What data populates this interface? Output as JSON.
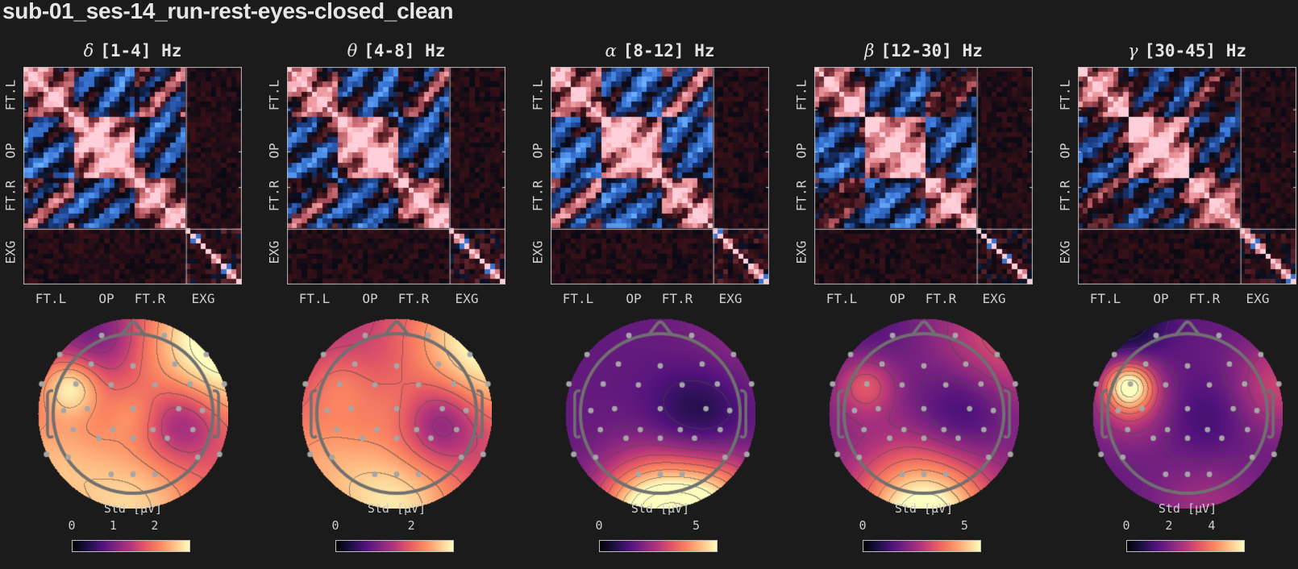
{
  "page": {
    "title": "sub-01_ses-14_run-rest-eyes-closed_clean",
    "background": "#1b1b1b"
  },
  "colormaps": {
    "correlation": [
      "#6aaefc",
      "#3a78d8",
      "#1c3f86",
      "#070a14",
      "#3b1118",
      "#b2555e",
      "#f19aa2",
      "#ffd0da"
    ],
    "magma": [
      "#000004",
      "#1c1044",
      "#4f127b",
      "#812581",
      "#b5367a",
      "#e55964",
      "#fb8761",
      "#fec287",
      "#fcfdbf"
    ]
  },
  "matrix_layout": {
    "n_eeg": 32,
    "n_exg": 11,
    "group_labels_y": [
      "FT.L",
      "OP",
      "FT.R",
      "EXG"
    ],
    "group_labels_x": [
      "FT.L",
      "OP",
      "FT.R",
      "EXG"
    ]
  },
  "electrodes": [
    [
      -0.33,
      -0.82
    ],
    [
      0.33,
      -0.82
    ],
    [
      -0.77,
      -0.62
    ],
    [
      -0.44,
      -0.52
    ],
    [
      0.0,
      -0.5
    ],
    [
      0.44,
      -0.52
    ],
    [
      0.77,
      -0.62
    ],
    [
      -0.96,
      -0.31
    ],
    [
      -0.6,
      -0.31
    ],
    [
      -0.23,
      -0.3
    ],
    [
      0.23,
      -0.3
    ],
    [
      0.6,
      -0.31
    ],
    [
      0.96,
      -0.31
    ],
    [
      -0.73,
      -0.03
    ],
    [
      -0.48,
      -0.05
    ],
    [
      0.0,
      -0.05
    ],
    [
      0.48,
      -0.05
    ],
    [
      0.73,
      -0.03
    ],
    [
      -0.63,
      0.17
    ],
    [
      -0.21,
      0.17
    ],
    [
      0.21,
      0.17
    ],
    [
      0.63,
      0.17
    ],
    [
      -0.91,
      0.43
    ],
    [
      -0.36,
      0.26
    ],
    [
      0.0,
      0.26
    ],
    [
      0.36,
      0.26
    ],
    [
      0.91,
      0.43
    ],
    [
      -0.68,
      0.46
    ],
    [
      0.68,
      0.46
    ],
    [
      -0.23,
      0.64
    ],
    [
      0.0,
      0.64
    ],
    [
      0.23,
      0.64
    ]
  ],
  "panels": [
    {
      "id": "delta",
      "greek": "δ",
      "range_label": "[1-4] Hz",
      "seed": 11,
      "ftl_structure": 0.9,
      "topomap": {
        "base": 0.55,
        "blobs": [
          [
            -0.66,
            -0.3,
            0.22,
            0.4
          ],
          [
            0.0,
            0.0,
            0.2,
            0.12
          ],
          [
            0.52,
            0.1,
            0.3,
            -0.3
          ],
          [
            -0.4,
            -0.85,
            0.35,
            -0.25
          ],
          [
            0.95,
            -0.75,
            0.6,
            0.55
          ],
          [
            0.0,
            1.0,
            0.55,
            0.35
          ],
          [
            -0.95,
            0.5,
            0.45,
            0.25
          ]
        ],
        "colorbar_label": "Std [μV]",
        "ticks": [
          {
            "label": "0",
            "pos": 0.0
          },
          {
            "label": "1",
            "pos": 0.35
          },
          {
            "label": "2",
            "pos": 0.7
          }
        ]
      }
    },
    {
      "id": "theta",
      "greek": "θ",
      "range_label": "[4-8] Hz",
      "seed": 23,
      "ftl_structure": 0.9,
      "topomap": {
        "base": 0.48,
        "blobs": [
          [
            0.45,
            0.1,
            0.3,
            -0.3
          ],
          [
            0.0,
            -0.05,
            0.25,
            0.1
          ],
          [
            0.95,
            -0.75,
            0.6,
            0.55
          ],
          [
            0.0,
            1.0,
            0.55,
            0.45
          ],
          [
            -0.95,
            0.45,
            0.5,
            0.25
          ],
          [
            -0.6,
            -0.3,
            0.25,
            0.15
          ]
        ],
        "colorbar_label": "Std [μV]",
        "ticks": [
          {
            "label": "0",
            "pos": 0.0
          },
          {
            "label": "2",
            "pos": 0.64
          }
        ]
      }
    },
    {
      "id": "alpha",
      "greek": "α",
      "range_label": "[8-12] Hz",
      "seed": 37,
      "ftl_structure": 1.0,
      "topomap": {
        "base": 0.3,
        "blobs": [
          [
            0.4,
            0.0,
            0.35,
            -0.2
          ],
          [
            0.15,
            1.1,
            0.45,
            0.8
          ],
          [
            -0.3,
            1.0,
            0.35,
            0.25
          ],
          [
            0.7,
            0.9,
            0.35,
            0.25
          ],
          [
            0.9,
            -0.8,
            0.5,
            0.1
          ]
        ],
        "colorbar_label": "Std [μV]",
        "ticks": [
          {
            "label": "0",
            "pos": 0.0
          },
          {
            "label": "5",
            "pos": 0.82
          }
        ]
      }
    },
    {
      "id": "beta",
      "greek": "β",
      "range_label": "[12-30] Hz",
      "seed": 53,
      "ftl_structure": 1.0,
      "topomap": {
        "base": 0.36,
        "blobs": [
          [
            -0.62,
            -0.3,
            0.22,
            0.28
          ],
          [
            0.4,
            0.0,
            0.35,
            -0.2
          ],
          [
            0.0,
            1.1,
            0.5,
            0.75
          ],
          [
            0.9,
            -0.8,
            0.5,
            0.25
          ],
          [
            -0.6,
            -0.9,
            0.4,
            -0.1
          ]
        ],
        "colorbar_label": "Std [μV]",
        "ticks": [
          {
            "label": "0",
            "pos": 0.0
          },
          {
            "label": "5",
            "pos": 0.86
          }
        ]
      }
    },
    {
      "id": "gamma",
      "greek": "γ",
      "range_label": "[30-45] Hz",
      "seed": 71,
      "ftl_structure": 0.6,
      "topomap": {
        "base": 0.3,
        "blobs": [
          [
            -0.62,
            -0.3,
            0.18,
            0.62
          ],
          [
            -0.6,
            -0.1,
            0.3,
            0.22
          ],
          [
            -0.7,
            -1.0,
            0.3,
            -0.3
          ],
          [
            0.95,
            -0.3,
            0.35,
            0.25
          ],
          [
            0.2,
            0.05,
            0.3,
            -0.1
          ],
          [
            0.2,
            1.0,
            0.4,
            0.15
          ]
        ],
        "colorbar_label": "Std [μV]",
        "ticks": [
          {
            "label": "0",
            "pos": 0.0
          },
          {
            "label": "2",
            "pos": 0.36
          },
          {
            "label": "4",
            "pos": 0.72
          }
        ]
      }
    }
  ],
  "chart_data": [
    {
      "type": "heatmap",
      "title": "δ [1-4] Hz",
      "subtitle": "sub-01_ses-14_run-rest-eyes-closed_clean",
      "xlabel_ticks": [
        "FT.L",
        "OP",
        "FT.R",
        "EXG"
      ],
      "ylabel_ticks": [
        "FT.L",
        "OP",
        "FT.R",
        "EXG"
      ],
      "description": "Channel correlation matrix (diverging blue-black-pink), ~43x43 channels; strong structure within EEG block, weak EEG-EXG coupling",
      "colorscale": "diverging blue/pink",
      "grid": false
    },
    {
      "type": "heatmap",
      "title": "θ [4-8] Hz",
      "xlabel_ticks": [
        "FT.L",
        "OP",
        "FT.R",
        "EXG"
      ],
      "ylabel_ticks": [
        "FT.L",
        "OP",
        "FT.R",
        "EXG"
      ],
      "colorscale": "diverging blue/pink",
      "grid": false
    },
    {
      "type": "heatmap",
      "title": "α [8-12] Hz",
      "xlabel_ticks": [
        "FT.L",
        "OP",
        "FT.R",
        "EXG"
      ],
      "ylabel_ticks": [
        "FT.L",
        "OP",
        "FT.R",
        "EXG"
      ],
      "colorscale": "diverging blue/pink",
      "grid": false
    },
    {
      "type": "heatmap",
      "title": "β [12-30] Hz",
      "xlabel_ticks": [
        "FT.L",
        "OP",
        "FT.R",
        "EXG"
      ],
      "ylabel_ticks": [
        "FT.L",
        "OP",
        "FT.R",
        "EXG"
      ],
      "colorscale": "diverging blue/pink",
      "grid": false
    },
    {
      "type": "heatmap",
      "title": "γ [30-45] Hz",
      "xlabel_ticks": [
        "FT.L",
        "OP",
        "FT.R",
        "EXG"
      ],
      "ylabel_ticks": [
        "FT.L",
        "OP",
        "FT.R",
        "EXG"
      ],
      "colorscale": "diverging blue/pink",
      "grid": false
    },
    {
      "type": "heatmap",
      "title": "Topomap δ [1-4] Hz",
      "colorbar_label": "Std [μV]",
      "colorbar_ticks": [
        0,
        1,
        2
      ],
      "colorbar_range": [
        0,
        2.85
      ],
      "colorscale": "magma",
      "description": "Scalp topography of per-channel std; hotspot left temporal, low right centro-parietal, high at right-frontal and posterior rim"
    },
    {
      "type": "heatmap",
      "title": "Topomap θ [4-8] Hz",
      "colorbar_label": "Std [μV]",
      "colorbar_ticks": [
        0,
        2
      ],
      "colorbar_range": [
        0,
        3.1
      ],
      "colorscale": "magma"
    },
    {
      "type": "heatmap",
      "title": "Topomap α [8-12] Hz",
      "colorbar_label": "Std [μV]",
      "colorbar_ticks": [
        0,
        5
      ],
      "colorbar_range": [
        0,
        6.1
      ],
      "colorscale": "magma",
      "description": "Strong occipital maximum"
    },
    {
      "type": "heatmap",
      "title": "Topomap β [12-30] Hz",
      "colorbar_label": "Std [μV]",
      "colorbar_ticks": [
        0,
        5
      ],
      "colorbar_range": [
        0,
        5.8
      ],
      "colorscale": "magma",
      "description": "Occipital maximum, secondary left temporal"
    },
    {
      "type": "heatmap",
      "title": "Topomap γ [30-45] Hz",
      "colorbar_label": "Std [μV]",
      "colorbar_ticks": [
        0,
        2,
        4
      ],
      "colorbar_range": [
        0,
        5.5
      ],
      "colorscale": "magma",
      "description": "Focal left temporal maximum"
    }
  ]
}
